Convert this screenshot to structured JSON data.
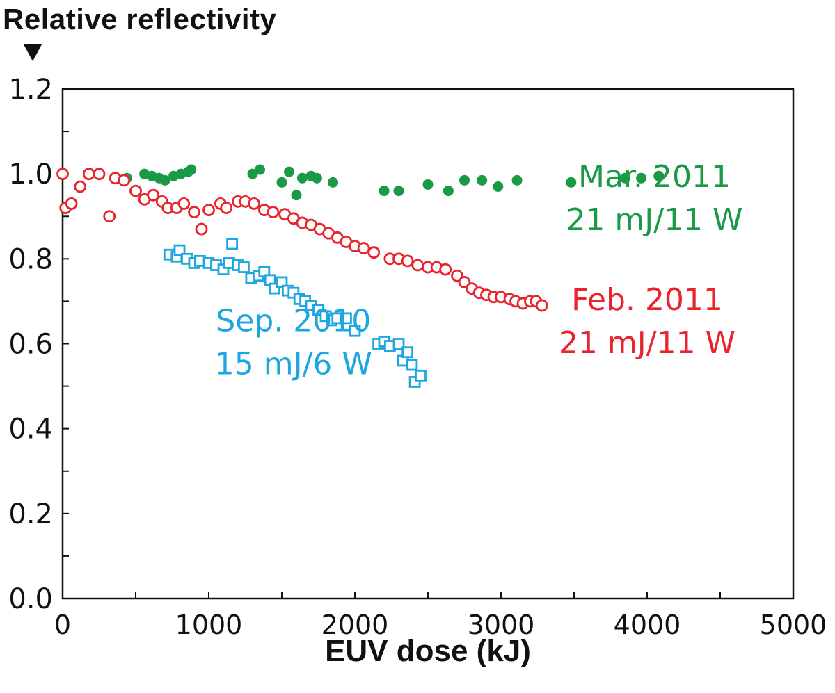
{
  "chart_data": {
    "type": "scatter",
    "title": "",
    "ylabel": "Relative reflectivity",
    "xlabel": "EUV dose (kJ)",
    "xlim": [
      0,
      5000
    ],
    "ylim": [
      0.0,
      1.2
    ],
    "x_ticks": [
      "0",
      "1000",
      "2000",
      "3000",
      "4000",
      "5000"
    ],
    "y_ticks": [
      "0.0",
      "0.2",
      "0.4",
      "0.6",
      "0.8",
      "1.0",
      "1.2"
    ],
    "grid": false,
    "series": [
      {
        "name": "Mar. 2011",
        "subtitle": "21 mJ/11 W",
        "color": "#1a9a46",
        "marker": "filled-circle",
        "label_position": {
          "x": 4050,
          "y": 0.93
        },
        "points": [
          [
            440,
            0.99
          ],
          [
            560,
            1.0
          ],
          [
            610,
            0.995
          ],
          [
            660,
            0.99
          ],
          [
            700,
            0.985
          ],
          [
            760,
            0.995
          ],
          [
            810,
            1.0
          ],
          [
            860,
            1.005
          ],
          [
            880,
            1.01
          ],
          [
            1300,
            1.0
          ],
          [
            1350,
            1.01
          ],
          [
            1500,
            0.98
          ],
          [
            1550,
            1.005
          ],
          [
            1600,
            0.95
          ],
          [
            1640,
            0.99
          ],
          [
            1700,
            0.995
          ],
          [
            1740,
            0.99
          ],
          [
            1850,
            0.98
          ],
          [
            2200,
            0.96
          ],
          [
            2300,
            0.96
          ],
          [
            2500,
            0.975
          ],
          [
            2640,
            0.96
          ],
          [
            2750,
            0.985
          ],
          [
            2870,
            0.985
          ],
          [
            2980,
            0.97
          ],
          [
            3110,
            0.985
          ],
          [
            3480,
            0.98
          ],
          [
            3850,
            0.99
          ],
          [
            3960,
            0.99
          ],
          [
            4080,
            0.995
          ]
        ]
      },
      {
        "name": "Feb. 2011",
        "subtitle": "21 mJ/11 W",
        "color": "#e8242c",
        "marker": "open-circle",
        "label_position": {
          "x": 4000,
          "y": 0.64
        },
        "points": [
          [
            0,
            1.0
          ],
          [
            20,
            0.92
          ],
          [
            60,
            0.93
          ],
          [
            120,
            0.97
          ],
          [
            180,
            1.0
          ],
          [
            250,
            1.0
          ],
          [
            320,
            0.9
          ],
          [
            360,
            0.99
          ],
          [
            420,
            0.985
          ],
          [
            500,
            0.96
          ],
          [
            560,
            0.94
          ],
          [
            620,
            0.95
          ],
          [
            680,
            0.935
          ],
          [
            720,
            0.92
          ],
          [
            780,
            0.92
          ],
          [
            830,
            0.93
          ],
          [
            900,
            0.91
          ],
          [
            950,
            0.87
          ],
          [
            1000,
            0.915
          ],
          [
            1080,
            0.93
          ],
          [
            1120,
            0.92
          ],
          [
            1200,
            0.935
          ],
          [
            1250,
            0.935
          ],
          [
            1310,
            0.93
          ],
          [
            1380,
            0.915
          ],
          [
            1440,
            0.91
          ],
          [
            1520,
            0.905
          ],
          [
            1580,
            0.895
          ],
          [
            1640,
            0.885
          ],
          [
            1700,
            0.88
          ],
          [
            1760,
            0.87
          ],
          [
            1820,
            0.86
          ],
          [
            1880,
            0.85
          ],
          [
            1940,
            0.84
          ],
          [
            2000,
            0.83
          ],
          [
            2060,
            0.825
          ],
          [
            2130,
            0.815
          ],
          [
            2240,
            0.8
          ],
          [
            2300,
            0.8
          ],
          [
            2360,
            0.795
          ],
          [
            2430,
            0.785
          ],
          [
            2500,
            0.78
          ],
          [
            2560,
            0.78
          ],
          [
            2620,
            0.775
          ],
          [
            2700,
            0.76
          ],
          [
            2750,
            0.745
          ],
          [
            2800,
            0.73
          ],
          [
            2850,
            0.72
          ],
          [
            2900,
            0.715
          ],
          [
            2950,
            0.71
          ],
          [
            3000,
            0.71
          ],
          [
            3060,
            0.705
          ],
          [
            3100,
            0.7
          ],
          [
            3150,
            0.695
          ],
          [
            3200,
            0.7
          ],
          [
            3240,
            0.7
          ],
          [
            3280,
            0.69
          ]
        ]
      },
      {
        "name": "Sep. 2010",
        "subtitle": "15 mJ/6 W",
        "color": "#1ea6e0",
        "marker": "open-square",
        "label_position": {
          "x": 1580,
          "y": 0.59
        },
        "points": [
          [
            730,
            0.81
          ],
          [
            780,
            0.805
          ],
          [
            800,
            0.82
          ],
          [
            850,
            0.8
          ],
          [
            900,
            0.79
          ],
          [
            940,
            0.795
          ],
          [
            1000,
            0.79
          ],
          [
            1050,
            0.785
          ],
          [
            1100,
            0.775
          ],
          [
            1140,
            0.79
          ],
          [
            1160,
            0.835
          ],
          [
            1200,
            0.785
          ],
          [
            1240,
            0.78
          ],
          [
            1290,
            0.755
          ],
          [
            1340,
            0.76
          ],
          [
            1380,
            0.77
          ],
          [
            1420,
            0.75
          ],
          [
            1450,
            0.73
          ],
          [
            1500,
            0.745
          ],
          [
            1540,
            0.725
          ],
          [
            1580,
            0.72
          ],
          [
            1620,
            0.705
          ],
          [
            1660,
            0.7
          ],
          [
            1700,
            0.69
          ],
          [
            1750,
            0.68
          ],
          [
            1800,
            0.665
          ],
          [
            1840,
            0.655
          ],
          [
            1880,
            0.66
          ],
          [
            1940,
            0.66
          ],
          [
            2000,
            0.63
          ],
          [
            2160,
            0.6
          ],
          [
            2200,
            0.605
          ],
          [
            2240,
            0.595
          ],
          [
            2300,
            0.6
          ],
          [
            2330,
            0.56
          ],
          [
            2360,
            0.58
          ],
          [
            2390,
            0.55
          ],
          [
            2410,
            0.51
          ],
          [
            2450,
            0.525
          ]
        ]
      }
    ]
  }
}
